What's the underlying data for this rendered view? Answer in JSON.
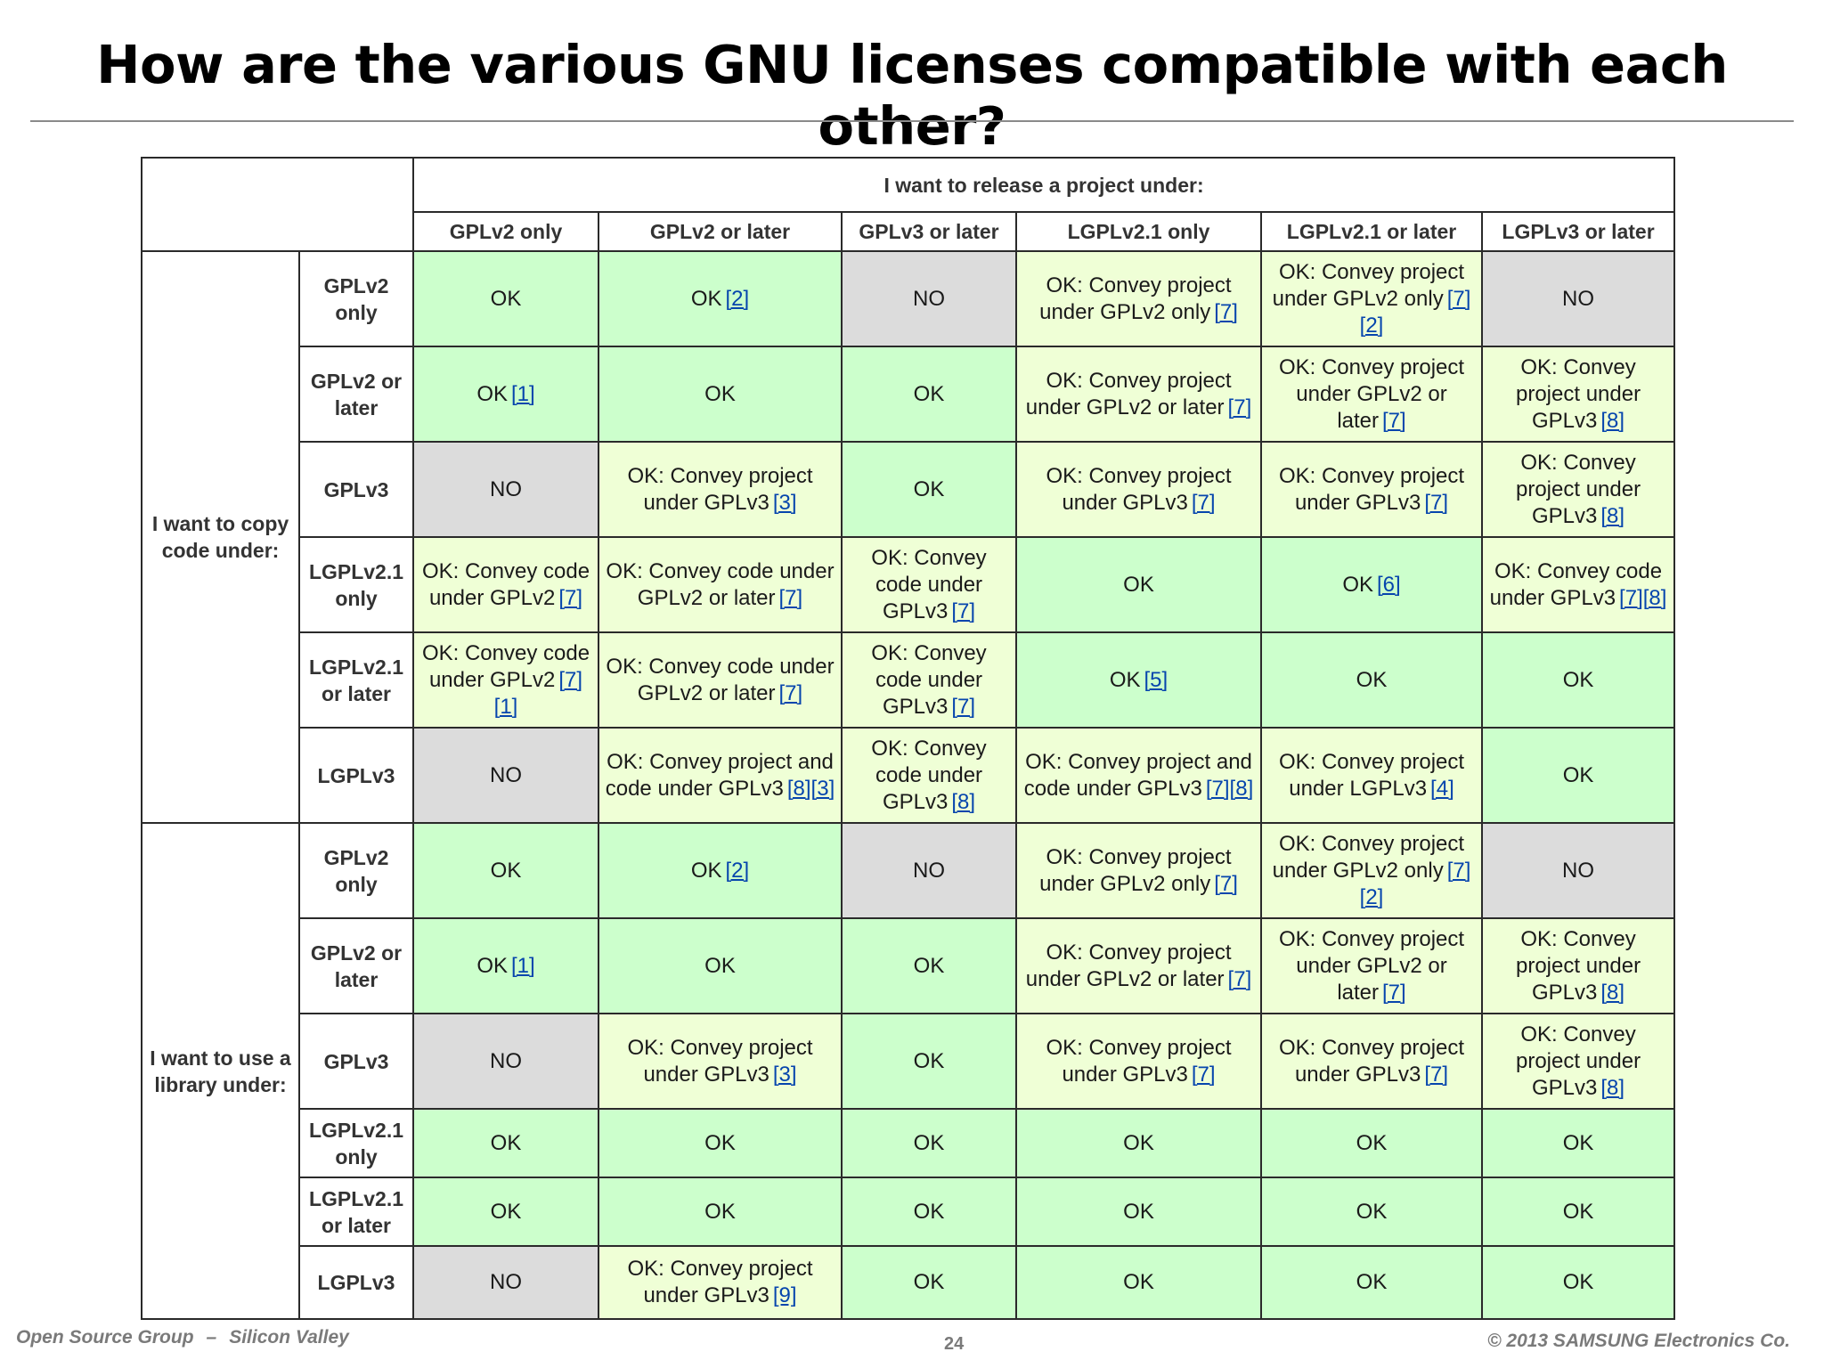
{
  "title": "How are the various GNU licenses compatible with each other?",
  "table": {
    "top_header": "I want to release a project under:",
    "columns": [
      "GPLv2 only",
      "GPLv2 or later",
      "GPLv3 or later",
      "LGPLv2.1 only",
      "LGPLv2.1 or later",
      "LGPLv3 or later"
    ],
    "groups": [
      {
        "label": "I want to copy code under:",
        "rows": [
          {
            "label": "GPLv2 only",
            "cells": [
              {
                "text": "OK",
                "refs": "",
                "type": "ok"
              },
              {
                "text": "OK",
                "refs": "[2]",
                "type": "ok"
              },
              {
                "text": "NO",
                "refs": "",
                "type": "no"
              },
              {
                "text": "OK: Convey project under GPLv2 only",
                "refs": "[7]",
                "type": "note"
              },
              {
                "text": "OK: Convey project under GPLv2 only",
                "refs": "[7][2]",
                "type": "note"
              },
              {
                "text": "NO",
                "refs": "",
                "type": "no"
              }
            ]
          },
          {
            "label": "GPLv2 or later",
            "cells": [
              {
                "text": "OK",
                "refs": "[1]",
                "type": "ok"
              },
              {
                "text": "OK",
                "refs": "",
                "type": "ok"
              },
              {
                "text": "OK",
                "refs": "",
                "type": "ok"
              },
              {
                "text": "OK: Convey project under GPLv2 or later",
                "refs": "[7]",
                "type": "note"
              },
              {
                "text": "OK: Convey project under GPLv2 or later",
                "refs": "[7]",
                "type": "note"
              },
              {
                "text": "OK: Convey project under GPLv3",
                "refs": "[8]",
                "type": "note"
              }
            ]
          },
          {
            "label": "GPLv3",
            "cells": [
              {
                "text": "NO",
                "refs": "",
                "type": "no"
              },
              {
                "text": "OK: Convey project under GPLv3",
                "refs": "[3]",
                "type": "note"
              },
              {
                "text": "OK",
                "refs": "",
                "type": "ok"
              },
              {
                "text": "OK: Convey project under GPLv3",
                "refs": "[7]",
                "type": "note"
              },
              {
                "text": "OK: Convey project under GPLv3",
                "refs": "[7]",
                "type": "note"
              },
              {
                "text": "OK: Convey project under GPLv3",
                "refs": "[8]",
                "type": "note"
              }
            ]
          },
          {
            "label": "LGPLv2.1 only",
            "cells": [
              {
                "text": "OK: Convey code under GPLv2",
                "refs": "[7]",
                "type": "note"
              },
              {
                "text": "OK: Convey code under GPLv2 or later",
                "refs": "[7]",
                "type": "note"
              },
              {
                "text": "OK: Convey code under GPLv3",
                "refs": "[7]",
                "type": "note"
              },
              {
                "text": "OK",
                "refs": "",
                "type": "ok"
              },
              {
                "text": "OK",
                "refs": "[6]",
                "type": "ok"
              },
              {
                "text": "OK: Convey code under GPLv3",
                "refs": "[7][8]",
                "type": "note"
              }
            ]
          },
          {
            "label": "LGPLv2.1 or later",
            "cells": [
              {
                "text": "OK: Convey code under GPLv2",
                "refs": "[7][1]",
                "type": "note"
              },
              {
                "text": "OK: Convey code under GPLv2 or later",
                "refs": "[7]",
                "type": "note"
              },
              {
                "text": "OK: Convey code under GPLv3",
                "refs": "[7]",
                "type": "note"
              },
              {
                "text": "OK",
                "refs": "[5]",
                "type": "ok"
              },
              {
                "text": "OK",
                "refs": "",
                "type": "ok"
              },
              {
                "text": "OK",
                "refs": "",
                "type": "ok"
              }
            ]
          },
          {
            "label": "LGPLv3",
            "cells": [
              {
                "text": "NO",
                "refs": "",
                "type": "no"
              },
              {
                "text": "OK: Convey project and code under GPLv3",
                "refs": "[8][3]",
                "type": "note"
              },
              {
                "text": "OK: Convey code under GPLv3",
                "refs": "[8]",
                "type": "note"
              },
              {
                "text": "OK: Convey project and code under GPLv3",
                "refs": "[7][8]",
                "type": "note"
              },
              {
                "text": "OK: Convey project under LGPLv3",
                "refs": "[4]",
                "type": "note"
              },
              {
                "text": "OK",
                "refs": "",
                "type": "ok"
              }
            ]
          }
        ]
      },
      {
        "label": "I want to use a library under:",
        "rows": [
          {
            "label": "GPLv2 only",
            "cells": [
              {
                "text": "OK",
                "refs": "",
                "type": "ok"
              },
              {
                "text": "OK",
                "refs": "[2]",
                "type": "ok"
              },
              {
                "text": "NO",
                "refs": "",
                "type": "no"
              },
              {
                "text": "OK: Convey project under GPLv2 only",
                "refs": "[7]",
                "type": "note"
              },
              {
                "text": "OK: Convey project under GPLv2 only",
                "refs": "[7][2]",
                "type": "note"
              },
              {
                "text": "NO",
                "refs": "",
                "type": "no"
              }
            ]
          },
          {
            "label": "GPLv2 or later",
            "cells": [
              {
                "text": "OK",
                "refs": "[1]",
                "type": "ok"
              },
              {
                "text": "OK",
                "refs": "",
                "type": "ok"
              },
              {
                "text": "OK",
                "refs": "",
                "type": "ok"
              },
              {
                "text": "OK: Convey project under GPLv2 or later",
                "refs": "[7]",
                "type": "note"
              },
              {
                "text": "OK: Convey project under GPLv2 or later",
                "refs": "[7]",
                "type": "note"
              },
              {
                "text": "OK: Convey project under GPLv3",
                "refs": "[8]",
                "type": "note"
              }
            ]
          },
          {
            "label": "GPLv3",
            "cells": [
              {
                "text": "NO",
                "refs": "",
                "type": "no"
              },
              {
                "text": "OK: Convey project under GPLv3",
                "refs": "[3]",
                "type": "note"
              },
              {
                "text": "OK",
                "refs": "",
                "type": "ok"
              },
              {
                "text": "OK: Convey project under GPLv3",
                "refs": "[7]",
                "type": "note"
              },
              {
                "text": "OK: Convey project under GPLv3",
                "refs": "[7]",
                "type": "note"
              },
              {
                "text": "OK: Convey project under GPLv3",
                "refs": "[8]",
                "type": "note"
              }
            ]
          },
          {
            "label": "LGPLv2.1 only",
            "cells": [
              {
                "text": "OK",
                "refs": "",
                "type": "ok"
              },
              {
                "text": "OK",
                "refs": "",
                "type": "ok"
              },
              {
                "text": "OK",
                "refs": "",
                "type": "ok"
              },
              {
                "text": "OK",
                "refs": "",
                "type": "ok"
              },
              {
                "text": "OK",
                "refs": "",
                "type": "ok"
              },
              {
                "text": "OK",
                "refs": "",
                "type": "ok"
              }
            ]
          },
          {
            "label": "LGPLv2.1 or later",
            "cells": [
              {
                "text": "OK",
                "refs": "",
                "type": "ok"
              },
              {
                "text": "OK",
                "refs": "",
                "type": "ok"
              },
              {
                "text": "OK",
                "refs": "",
                "type": "ok"
              },
              {
                "text": "OK",
                "refs": "",
                "type": "ok"
              },
              {
                "text": "OK",
                "refs": "",
                "type": "ok"
              },
              {
                "text": "OK",
                "refs": "",
                "type": "ok"
              }
            ]
          },
          {
            "label": "LGPLv3",
            "cells": [
              {
                "text": "NO",
                "refs": "",
                "type": "no"
              },
              {
                "text": "OK: Convey project under GPLv3",
                "refs": "[9]",
                "type": "note"
              },
              {
                "text": "OK",
                "refs": "",
                "type": "ok"
              },
              {
                "text": "OK",
                "refs": "",
                "type": "ok"
              },
              {
                "text": "OK",
                "refs": "",
                "type": "ok"
              },
              {
                "text": "OK",
                "refs": "",
                "type": "ok"
              }
            ]
          }
        ]
      }
    ]
  },
  "footer": {
    "left_org": "Open Source Group",
    "left_sep": "–",
    "left_location": "Silicon Valley",
    "page_number": "24",
    "copyright": "© 2013 SAMSUNG Electronics Co."
  },
  "colors": {
    "ok": "#ccffcc",
    "note": "#efffd6",
    "no": "#dcdcdc",
    "link": "#0645ad"
  }
}
